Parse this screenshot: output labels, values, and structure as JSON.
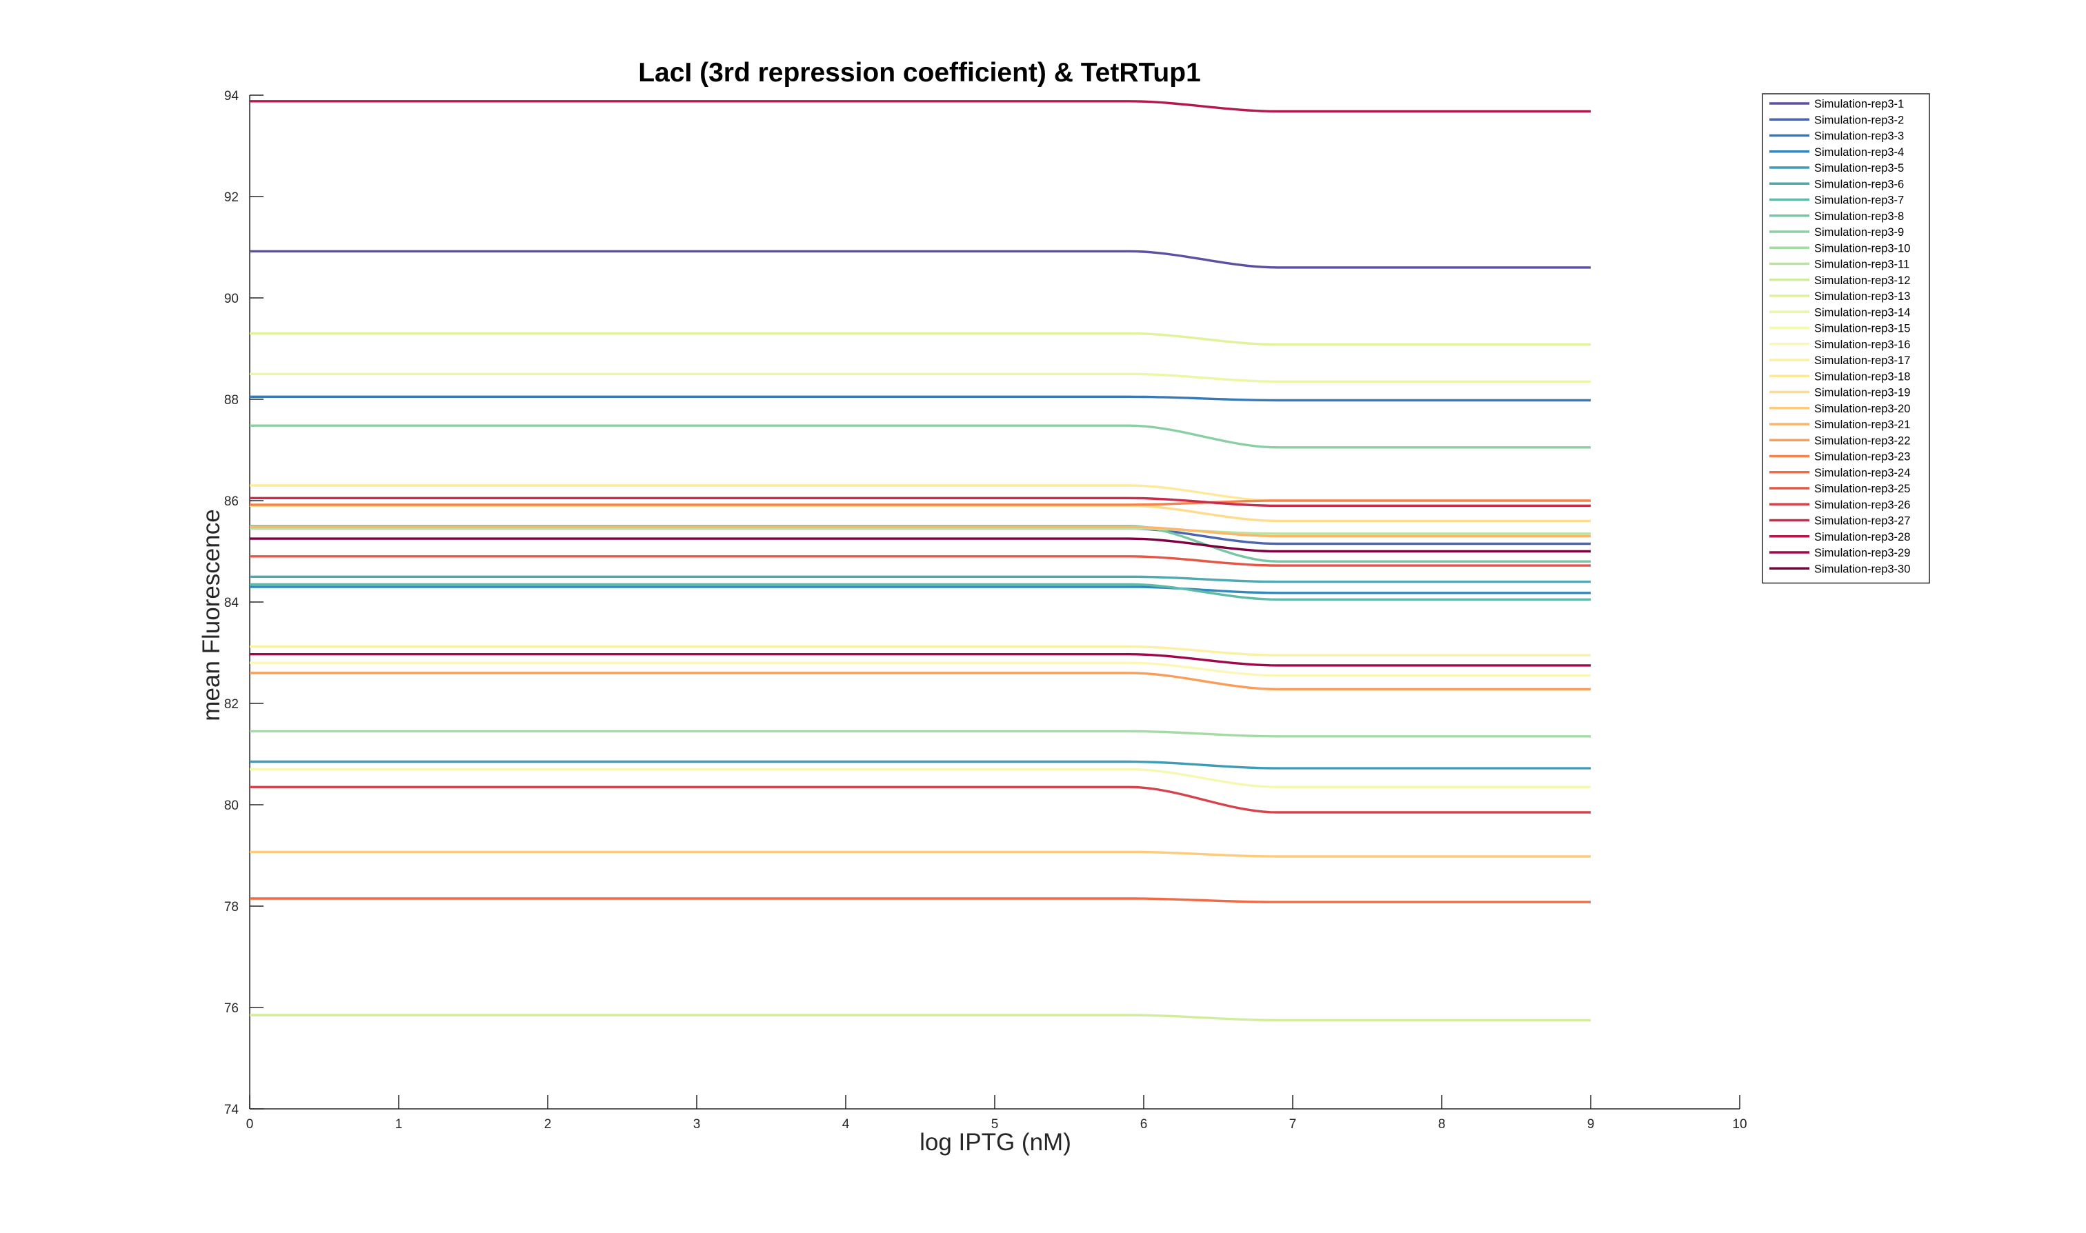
{
  "chart_data": {
    "type": "line",
    "title": "LacI (3rd repression coefficient) & TetRTup1",
    "xlabel": "log IPTG (nM)",
    "ylabel": "mean Fluorescence",
    "xlim": [
      0,
      10
    ],
    "ylim": [
      74,
      94
    ],
    "xticks": [
      0,
      1,
      2,
      3,
      4,
      5,
      6,
      7,
      8,
      9,
      10
    ],
    "yticks": [
      74,
      76,
      78,
      80,
      82,
      84,
      86,
      88,
      90,
      92,
      94
    ],
    "grid": false,
    "legend_position": "top-right",
    "series": [
      {
        "name": "Simulation-rep3-1",
        "color": "#5e4fa2",
        "start": 90.92,
        "end": 90.6
      },
      {
        "name": "Simulation-rep3-2",
        "color": "#4a64ad",
        "start": 85.45,
        "end": 85.15
      },
      {
        "name": "Simulation-rep3-3",
        "color": "#3779b7",
        "start": 88.05,
        "end": 87.98
      },
      {
        "name": "Simulation-rep3-4",
        "color": "#3288bd",
        "start": 84.3,
        "end": 84.18
      },
      {
        "name": "Simulation-rep3-5",
        "color": "#3e9db6",
        "start": 80.85,
        "end": 80.72
      },
      {
        "name": "Simulation-rep3-6",
        "color": "#4fa9b0",
        "start": 84.5,
        "end": 84.4
      },
      {
        "name": "Simulation-rep3-7",
        "color": "#5fbaa8",
        "start": 84.35,
        "end": 84.05
      },
      {
        "name": "Simulation-rep3-8",
        "color": "#74c6a5",
        "start": 85.5,
        "end": 84.8
      },
      {
        "name": "Simulation-rep3-9",
        "color": "#8acfa4",
        "start": 87.48,
        "end": 87.05
      },
      {
        "name": "Simulation-rep3-10",
        "color": "#a4daa4",
        "start": 81.45,
        "end": 81.35
      },
      {
        "name": "Simulation-rep3-11",
        "color": "#bbe3a0",
        "start": 85.45,
        "end": 85.35
      },
      {
        "name": "Simulation-rep3-12",
        "color": "#d0ec9c",
        "start": 75.85,
        "end": 75.75
      },
      {
        "name": "Simulation-rep3-13",
        "color": "#e0f39a",
        "start": 89.3,
        "end": 89.08
      },
      {
        "name": "Simulation-rep3-14",
        "color": "#ecf6a3",
        "start": 88.5,
        "end": 88.35
      },
      {
        "name": "Simulation-rep3-15",
        "color": "#f5f9b0",
        "start": 80.7,
        "end": 80.35
      },
      {
        "name": "Simulation-rep3-16",
        "color": "#fdf7b5",
        "start": 82.8,
        "end": 82.55
      },
      {
        "name": "Simulation-rep3-17",
        "color": "#fef0a3",
        "start": 83.12,
        "end": 82.95
      },
      {
        "name": "Simulation-rep3-18",
        "color": "#fee99a",
        "start": 86.3,
        "end": 86.0
      },
      {
        "name": "Simulation-rep3-19",
        "color": "#fedc8b",
        "start": 85.9,
        "end": 85.6
      },
      {
        "name": "Simulation-rep3-20",
        "color": "#fdcb7a",
        "start": 79.07,
        "end": 78.98
      },
      {
        "name": "Simulation-rep3-21",
        "color": "#fdb56a",
        "start": 85.48,
        "end": 85.3
      },
      {
        "name": "Simulation-rep3-22",
        "color": "#f99d59",
        "start": 82.6,
        "end": 82.28
      },
      {
        "name": "Simulation-rep3-23",
        "color": "#f6834c",
        "start": 85.92,
        "end": 86.0
      },
      {
        "name": "Simulation-rep3-24",
        "color": "#ef6a45",
        "start": 78.15,
        "end": 78.08
      },
      {
        "name": "Simulation-rep3-25",
        "color": "#e35747",
        "start": 84.9,
        "end": 84.72
      },
      {
        "name": "Simulation-rep3-26",
        "color": "#d7434c",
        "start": 80.35,
        "end": 79.85
      },
      {
        "name": "Simulation-rep3-27",
        "color": "#c72d4b",
        "start": 86.05,
        "end": 85.9
      },
      {
        "name": "Simulation-rep3-28",
        "color": "#b3194e",
        "start": 93.88,
        "end": 93.68
      },
      {
        "name": "Simulation-rep3-29",
        "color": "#a0084c",
        "start": 82.97,
        "end": 82.75
      },
      {
        "name": "Simulation-rep3-30",
        "color": "#7f0040",
        "start": 85.25,
        "end": 85.0
      }
    ]
  }
}
